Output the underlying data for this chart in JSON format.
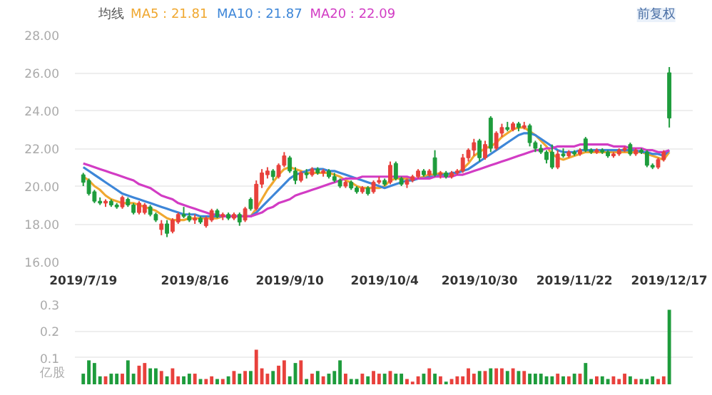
{
  "chart_data": [
    {
      "type": "candlestick",
      "legend": "top left",
      "legend_title": "均线",
      "annotations": [
        "前复权"
      ],
      "grid": "y",
      "categories": [
        "2019/7/19",
        null,
        null,
        null,
        null,
        null,
        null,
        null,
        null,
        null,
        null,
        null,
        null,
        null,
        null,
        null,
        null,
        null,
        null,
        null,
        "2019/8/16",
        null,
        null,
        null,
        null,
        null,
        null,
        null,
        null,
        null,
        null,
        null,
        null,
        null,
        null,
        null,
        null,
        "2019/9/10",
        null,
        null,
        null,
        null,
        null,
        null,
        null,
        null,
        null,
        null,
        null,
        null,
        null,
        null,
        null,
        null,
        "2019/10/4",
        null,
        null,
        null,
        null,
        null,
        null,
        null,
        null,
        null,
        null,
        null,
        null,
        null,
        null,
        null,
        null,
        "2019/10/30",
        null,
        null,
        null,
        null,
        null,
        null,
        null,
        null,
        null,
        null,
        null,
        null,
        null,
        null,
        null,
        null,
        "2019/11/22",
        null,
        null,
        null,
        null,
        null,
        null,
        null,
        null,
        null,
        null,
        null,
        null,
        null,
        null,
        null,
        null,
        "2019/12/17"
      ],
      "ylim": [
        16,
        28
      ],
      "yticks": [
        {
          "value": 16,
          "label": "16.00"
        },
        {
          "value": 18,
          "label": "18.00"
        },
        {
          "value": 20,
          "label": "20.00"
        },
        {
          "value": 22,
          "label": "22.00"
        },
        {
          "value": 24,
          "label": "24.00"
        },
        {
          "value": 26,
          "label": "26.00"
        },
        {
          "value": 28,
          "label": "28.00"
        }
      ],
      "colors": [
        "#1e9c3c",
        "#1e9c3c",
        "#1e9c3c",
        "#1e9c3c",
        "#e8413c",
        "#1e9c3c",
        "#1e9c3c",
        "#e8413c",
        "#1e9c3c",
        "#1e9c3c",
        "#e8413c",
        "#e8413c",
        "#1e9c3c",
        "#1e9c3c",
        "#e8413c",
        "#1e9c3c",
        "#e8413c",
        "#e8413c",
        "#1e9c3c",
        "#1e9c3c",
        "#e8413c",
        "#1e9c3c",
        "#e8413c",
        "#e8413c",
        "#1e9c3c",
        "#e8413c",
        "#1e9c3c",
        "#e8413c",
        "#1e9c3c",
        "#e8413c",
        "#1e9c3c",
        "#e8413c",
        "#e8413c",
        "#e8413c",
        "#1e9c3c",
        "#e8413c",
        "#e8413c",
        "#1e9c3c",
        "#1e9c3c",
        "#e8413c",
        "#1e9c3c",
        "#e8413c",
        "#1e9c3c",
        "#e8413c",
        "#1e9c3c",
        "#1e9c3c",
        "#1e9c3c",
        "#e8413c",
        "#1e9c3c",
        "#1e9c3c",
        "#e8413c",
        "#1e9c3c",
        "#e8413c",
        "#e8413c",
        "#1e9c3c",
        "#e8413c",
        "#1e9c3c",
        "#1e9c3c",
        "#e8413c",
        "#e8413c",
        "#e8413c",
        "#1e9c3c",
        "#e8413c",
        "#1e9c3c",
        "#e8413c",
        "#1e9c3c",
        "#e8413c",
        "#e8413c",
        "#e8413c",
        "#e8413c",
        "#e8413c",
        "#1e9c3c",
        "#e8413c",
        "#1e9c3c",
        "#e8413c",
        "#e8413c",
        "#1e9c3c",
        "#e8413c",
        "#1e9c3c",
        "#e8413c",
        "#1e9c3c",
        "#1e9c3c",
        "#1e9c3c",
        "#1e9c3c",
        "#1e9c3c",
        "#e8413c",
        "#1e9c3c",
        "#e8413c",
        "#1e9c3c",
        "#e8413c",
        "#1e9c3c",
        "#1e9c3c",
        "#e8413c",
        "#1e9c3c",
        "#1e9c3c",
        "#e8413c",
        "#e8413c",
        "#e8413c",
        "#1e9c3c",
        "#e8413c",
        "#1e9c3c",
        "#1e9c3c",
        "#1e9c3c",
        "#e8413c",
        "#e8413c",
        "#1e9c3c"
      ],
      "ohlc": [
        [
          20.6,
          20.7,
          20.0,
          20.2
        ],
        [
          20.3,
          20.4,
          19.5,
          19.6
        ],
        [
          19.7,
          19.8,
          19.1,
          19.2
        ],
        [
          19.2,
          19.4,
          19.0,
          19.1
        ],
        [
          19.1,
          19.3,
          18.9,
          19.2
        ],
        [
          19.2,
          19.3,
          18.9,
          19.0
        ],
        [
          19.0,
          19.1,
          18.8,
          18.9
        ],
        [
          18.9,
          19.5,
          18.8,
          19.4
        ],
        [
          19.3,
          19.4,
          18.9,
          19.0
        ],
        [
          19.0,
          19.1,
          18.5,
          18.6
        ],
        [
          18.6,
          19.2,
          18.5,
          19.1
        ],
        [
          18.6,
          19.1,
          18.5,
          19.0
        ],
        [
          18.9,
          19.0,
          18.4,
          18.5
        ],
        [
          18.5,
          18.6,
          18.1,
          18.2
        ],
        [
          17.7,
          18.2,
          17.4,
          18.0
        ],
        [
          18.0,
          18.2,
          17.3,
          17.5
        ],
        [
          17.6,
          18.3,
          17.5,
          18.2
        ],
        [
          18.1,
          18.6,
          18.0,
          18.5
        ],
        [
          18.5,
          18.9,
          18.3,
          18.4
        ],
        [
          18.4,
          18.6,
          18.1,
          18.2
        ],
        [
          18.2,
          18.5,
          18.0,
          18.3
        ],
        [
          18.3,
          18.4,
          18.0,
          18.1
        ],
        [
          17.9,
          18.4,
          17.8,
          18.3
        ],
        [
          18.2,
          18.8,
          18.1,
          18.7
        ],
        [
          18.7,
          18.8,
          18.3,
          18.4
        ],
        [
          18.4,
          18.6,
          18.2,
          18.5
        ],
        [
          18.5,
          18.6,
          18.2,
          18.3
        ],
        [
          18.3,
          18.6,
          18.2,
          18.5
        ],
        [
          18.5,
          18.6,
          17.9,
          18.1
        ],
        [
          18.2,
          18.9,
          18.1,
          18.8
        ],
        [
          19.3,
          19.4,
          18.7,
          18.8
        ],
        [
          18.8,
          20.3,
          18.7,
          20.1
        ],
        [
          20.1,
          20.9,
          19.9,
          20.7
        ],
        [
          20.6,
          21.0,
          20.4,
          20.8
        ],
        [
          20.8,
          20.9,
          20.3,
          20.5
        ],
        [
          20.5,
          21.2,
          20.4,
          21.1
        ],
        [
          21.1,
          21.8,
          21.0,
          21.6
        ],
        [
          21.5,
          21.6,
          20.7,
          20.8
        ],
        [
          20.8,
          21.0,
          20.1,
          20.3
        ],
        [
          20.3,
          20.8,
          20.2,
          20.7
        ],
        [
          20.7,
          20.9,
          20.4,
          20.6
        ],
        [
          20.6,
          21.0,
          20.5,
          20.9
        ],
        [
          20.9,
          21.0,
          20.6,
          20.7
        ],
        [
          20.7,
          20.9,
          20.5,
          20.8
        ],
        [
          20.8,
          20.9,
          20.4,
          20.5
        ],
        [
          20.5,
          20.7,
          20.2,
          20.3
        ],
        [
          20.3,
          20.4,
          19.9,
          20.0
        ],
        [
          20.0,
          20.3,
          19.9,
          20.2
        ],
        [
          20.2,
          20.3,
          19.8,
          19.9
        ],
        [
          19.9,
          20.0,
          19.6,
          19.7
        ],
        [
          19.7,
          20.0,
          19.6,
          19.9
        ],
        [
          19.9,
          20.0,
          19.5,
          19.6
        ],
        [
          19.7,
          20.3,
          19.6,
          20.2
        ],
        [
          20.2,
          20.5,
          20.1,
          20.3
        ],
        [
          20.3,
          20.4,
          20.0,
          20.1
        ],
        [
          20.2,
          21.3,
          20.1,
          21.1
        ],
        [
          21.2,
          21.3,
          20.3,
          20.4
        ],
        [
          20.4,
          20.5,
          20.0,
          20.1
        ],
        [
          20.1,
          20.4,
          19.9,
          20.3
        ],
        [
          20.3,
          20.6,
          20.2,
          20.5
        ],
        [
          20.5,
          20.9,
          20.4,
          20.8
        ],
        [
          20.8,
          20.9,
          20.5,
          20.6
        ],
        [
          20.6,
          20.9,
          20.5,
          20.8
        ],
        [
          21.5,
          21.9,
          20.5,
          20.6
        ],
        [
          20.6,
          20.8,
          20.4,
          20.7
        ],
        [
          20.7,
          20.8,
          20.4,
          20.5
        ],
        [
          20.5,
          20.8,
          20.4,
          20.7
        ],
        [
          20.7,
          20.9,
          20.6,
          20.8
        ],
        [
          20.8,
          21.7,
          20.7,
          21.5
        ],
        [
          21.5,
          22.0,
          21.3,
          21.9
        ],
        [
          21.9,
          22.5,
          21.6,
          22.3
        ],
        [
          22.4,
          22.5,
          21.3,
          21.5
        ],
        [
          21.5,
          22.4,
          21.4,
          22.2
        ],
        [
          23.6,
          23.7,
          21.8,
          22.0
        ],
        [
          22.0,
          22.9,
          21.9,
          22.8
        ],
        [
          22.8,
          23.3,
          22.6,
          23.1
        ],
        [
          23.1,
          23.4,
          22.9,
          23.0
        ],
        [
          23.0,
          23.4,
          22.9,
          23.3
        ],
        [
          23.3,
          23.4,
          22.9,
          23.1
        ],
        [
          23.1,
          23.4,
          23.0,
          23.2
        ],
        [
          23.2,
          23.3,
          22.1,
          22.3
        ],
        [
          22.3,
          22.4,
          21.8,
          22.0
        ],
        [
          22.0,
          22.2,
          21.7,
          21.8
        ],
        [
          21.8,
          21.9,
          21.2,
          21.4
        ],
        [
          21.8,
          22.2,
          20.9,
          21.0
        ],
        [
          21.0,
          21.9,
          20.9,
          21.7
        ],
        [
          21.7,
          22.0,
          21.5,
          21.6
        ],
        [
          21.6,
          21.9,
          21.5,
          21.8
        ],
        [
          21.8,
          21.9,
          21.6,
          21.7
        ],
        [
          21.7,
          22.0,
          21.6,
          21.9
        ],
        [
          22.5,
          22.6,
          21.8,
          21.9
        ],
        [
          21.9,
          22.0,
          21.7,
          21.8
        ],
        [
          21.8,
          22.0,
          21.7,
          21.9
        ],
        [
          21.9,
          22.0,
          21.7,
          21.8
        ],
        [
          21.8,
          21.9,
          21.5,
          21.6
        ],
        [
          21.6,
          21.8,
          21.5,
          21.7
        ],
        [
          21.7,
          22.0,
          21.6,
          21.9
        ],
        [
          21.9,
          22.1,
          21.8,
          22.0
        ],
        [
          22.2,
          22.3,
          21.6,
          21.7
        ],
        [
          21.7,
          22.0,
          21.6,
          21.9
        ],
        [
          21.9,
          22.0,
          21.7,
          21.8
        ],
        [
          21.8,
          21.9,
          21.0,
          21.1
        ],
        [
          21.1,
          21.2,
          20.9,
          21.0
        ],
        [
          21.0,
          21.5,
          20.9,
          21.4
        ],
        [
          21.4,
          21.9,
          21.3,
          21.8
        ],
        [
          26.0,
          26.3,
          23.1,
          23.6
        ]
      ],
      "series": [
        {
          "type": "line",
          "name": "MA5 : 21.81",
          "color": "#f0a830",
          "values": [
            20.5,
            20.3,
            20.0,
            19.8,
            19.5,
            19.3,
            19.2,
            19.1,
            19.1,
            19.1,
            19.0,
            18.9,
            18.8,
            18.7,
            18.5,
            18.3,
            18.2,
            18.2,
            18.2,
            18.3,
            18.3,
            18.3,
            18.3,
            18.3,
            18.3,
            18.4,
            18.4,
            18.4,
            18.4,
            18.4,
            18.4,
            18.8,
            19.3,
            19.8,
            20.2,
            20.6,
            20.9,
            21.0,
            20.9,
            20.8,
            20.7,
            20.7,
            20.7,
            20.7,
            20.7,
            20.6,
            20.5,
            20.3,
            20.2,
            20.0,
            19.9,
            19.9,
            19.9,
            19.9,
            20.0,
            20.3,
            20.4,
            20.4,
            20.4,
            20.4,
            20.4,
            20.5,
            20.6,
            20.6,
            20.7,
            20.6,
            20.6,
            20.7,
            20.9,
            21.2,
            21.6,
            21.8,
            22.0,
            22.1,
            22.3,
            22.6,
            22.8,
            23.0,
            23.1,
            23.1,
            22.9,
            22.7,
            22.4,
            22.1,
            21.7,
            21.5,
            21.4,
            21.5,
            21.6,
            21.7,
            21.8,
            21.8,
            21.8,
            21.8,
            21.8,
            21.8,
            21.8,
            21.8,
            21.8,
            21.8,
            21.8,
            21.7,
            21.6,
            21.5,
            21.4,
            21.8
          ]
        },
        {
          "type": "line",
          "name": "MA10 : 21.87",
          "color": "#3d86d8",
          "values": [
            21.0,
            20.8,
            20.6,
            20.4,
            20.2,
            20.0,
            19.8,
            19.6,
            19.5,
            19.4,
            19.3,
            19.2,
            19.1,
            19.0,
            18.9,
            18.8,
            18.7,
            18.6,
            18.5,
            18.5,
            18.5,
            18.4,
            18.4,
            18.4,
            18.4,
            18.4,
            18.4,
            18.4,
            18.4,
            18.4,
            18.4,
            18.6,
            18.9,
            19.2,
            19.5,
            19.8,
            20.1,
            20.4,
            20.6,
            20.7,
            20.8,
            20.9,
            20.9,
            20.9,
            20.8,
            20.8,
            20.7,
            20.6,
            20.5,
            20.4,
            20.3,
            20.2,
            20.1,
            20.0,
            19.9,
            20.0,
            20.1,
            20.2,
            20.3,
            20.3,
            20.4,
            20.4,
            20.5,
            20.5,
            20.6,
            20.6,
            20.7,
            20.7,
            20.8,
            20.9,
            21.1,
            21.3,
            21.5,
            21.7,
            21.9,
            22.1,
            22.3,
            22.5,
            22.7,
            22.8,
            22.8,
            22.7,
            22.5,
            22.3,
            22.1,
            21.9,
            21.8,
            21.8,
            21.8,
            21.9,
            21.9,
            21.9,
            21.9,
            21.9,
            21.9,
            21.9,
            21.9,
            21.9,
            21.9,
            21.9,
            21.8,
            21.8,
            21.7,
            21.7,
            21.6,
            21.9
          ]
        },
        {
          "type": "line",
          "name": "MA20 : 22.09",
          "color": "#d23cc4",
          "values": [
            21.2,
            21.1,
            21.0,
            20.9,
            20.8,
            20.7,
            20.6,
            20.5,
            20.4,
            20.3,
            20.1,
            20.0,
            19.9,
            19.7,
            19.5,
            19.4,
            19.3,
            19.1,
            19.0,
            18.9,
            18.8,
            18.7,
            18.6,
            18.5,
            18.5,
            18.4,
            18.4,
            18.4,
            18.4,
            18.4,
            18.4,
            18.5,
            18.6,
            18.8,
            18.9,
            19.1,
            19.2,
            19.3,
            19.5,
            19.6,
            19.7,
            19.8,
            19.9,
            20.0,
            20.1,
            20.2,
            20.3,
            20.4,
            20.4,
            20.4,
            20.5,
            20.5,
            20.5,
            20.5,
            20.5,
            20.5,
            20.5,
            20.5,
            20.5,
            20.4,
            20.4,
            20.4,
            20.4,
            20.5,
            20.5,
            20.5,
            20.5,
            20.6,
            20.6,
            20.7,
            20.8,
            20.9,
            21.0,
            21.1,
            21.2,
            21.3,
            21.4,
            21.5,
            21.6,
            21.7,
            21.8,
            21.9,
            21.9,
            22.0,
            22.0,
            22.1,
            22.1,
            22.1,
            22.1,
            22.2,
            22.2,
            22.2,
            22.2,
            22.2,
            22.2,
            22.1,
            22.1,
            22.1,
            22.0,
            22.0,
            22.0,
            21.9,
            21.9,
            21.8,
            21.8,
            21.9
          ]
        }
      ]
    },
    {
      "type": "bar",
      "grid": "y",
      "tick_labels": "y",
      "categories": [
        "2019/7/19",
        null,
        null,
        null,
        null,
        null,
        null,
        null,
        null,
        null,
        null,
        null,
        null,
        null,
        null,
        null,
        null,
        null,
        null,
        null,
        "2019/8/16",
        null,
        null,
        null,
        null,
        null,
        null,
        null,
        null,
        null,
        null,
        null,
        null,
        null,
        null,
        null,
        null,
        "2019/9/10",
        null,
        null,
        null,
        null,
        null,
        null,
        null,
        null,
        null,
        null,
        null,
        null,
        null,
        null,
        null,
        null,
        "2019/10/4",
        null,
        null,
        null,
        null,
        null,
        null,
        null,
        null,
        null,
        null,
        null,
        null,
        null,
        null,
        null,
        null,
        "2019/10/30",
        null,
        null,
        null,
        null,
        null,
        null,
        null,
        null,
        null,
        null,
        null,
        null,
        null,
        null,
        null,
        null,
        "2019/11/22",
        null,
        null,
        null,
        null,
        null,
        null,
        null,
        null,
        null,
        null,
        null,
        null,
        null,
        null,
        null,
        null,
        "2019/12/17"
      ],
      "ylim": [
        0,
        0.3
      ],
      "yticks": [
        0.1,
        0.2,
        0.3
      ],
      "annotations": [
        "亿股"
      ],
      "values": [
        0.04,
        0.09,
        0.08,
        0.03,
        0.03,
        0.04,
        0.04,
        0.04,
        0.09,
        0.04,
        0.07,
        0.08,
        0.06,
        0.06,
        0.05,
        0.03,
        0.06,
        0.03,
        0.03,
        0.04,
        0.04,
        0.02,
        0.02,
        0.03,
        0.02,
        0.02,
        0.03,
        0.05,
        0.04,
        0.05,
        0.05,
        0.13,
        0.06,
        0.04,
        0.05,
        0.07,
        0.09,
        0.03,
        0.08,
        0.09,
        0.02,
        0.04,
        0.05,
        0.03,
        0.04,
        0.05,
        0.09,
        0.04,
        0.02,
        0.02,
        0.04,
        0.03,
        0.05,
        0.04,
        0.04,
        0.05,
        0.04,
        0.04,
        0.02,
        0.01,
        0.03,
        0.04,
        0.06,
        0.04,
        0.03,
        0.01,
        0.02,
        0.03,
        0.03,
        0.06,
        0.04,
        0.05,
        0.05,
        0.06,
        0.06,
        0.06,
        0.05,
        0.06,
        0.05,
        0.05,
        0.04,
        0.04,
        0.04,
        0.03,
        0.03,
        0.04,
        0.03,
        0.03,
        0.04,
        0.04,
        0.08,
        0.02,
        0.03,
        0.03,
        0.02,
        0.03,
        0.02,
        0.04,
        0.03,
        0.02,
        0.02,
        0.02,
        0.03,
        0.02,
        0.03,
        0.28
      ],
      "colors": [
        "#1e9c3c",
        "#1e9c3c",
        "#1e9c3c",
        "#1e9c3c",
        "#e8413c",
        "#1e9c3c",
        "#1e9c3c",
        "#e8413c",
        "#1e9c3c",
        "#1e9c3c",
        "#e8413c",
        "#e8413c",
        "#1e9c3c",
        "#1e9c3c",
        "#e8413c",
        "#1e9c3c",
        "#e8413c",
        "#e8413c",
        "#1e9c3c",
        "#1e9c3c",
        "#e8413c",
        "#1e9c3c",
        "#e8413c",
        "#e8413c",
        "#1e9c3c",
        "#e8413c",
        "#1e9c3c",
        "#e8413c",
        "#1e9c3c",
        "#e8413c",
        "#1e9c3c",
        "#e8413c",
        "#e8413c",
        "#e8413c",
        "#1e9c3c",
        "#e8413c",
        "#e8413c",
        "#1e9c3c",
        "#1e9c3c",
        "#e8413c",
        "#1e9c3c",
        "#e8413c",
        "#1e9c3c",
        "#e8413c",
        "#1e9c3c",
        "#1e9c3c",
        "#1e9c3c",
        "#e8413c",
        "#1e9c3c",
        "#1e9c3c",
        "#e8413c",
        "#1e9c3c",
        "#e8413c",
        "#e8413c",
        "#1e9c3c",
        "#e8413c",
        "#1e9c3c",
        "#1e9c3c",
        "#e8413c",
        "#e8413c",
        "#e8413c",
        "#1e9c3c",
        "#e8413c",
        "#1e9c3c",
        "#e8413c",
        "#1e9c3c",
        "#e8413c",
        "#e8413c",
        "#e8413c",
        "#e8413c",
        "#e8413c",
        "#1e9c3c",
        "#e8413c",
        "#1e9c3c",
        "#e8413c",
        "#e8413c",
        "#1e9c3c",
        "#e8413c",
        "#1e9c3c",
        "#e8413c",
        "#1e9c3c",
        "#1e9c3c",
        "#1e9c3c",
        "#1e9c3c",
        "#1e9c3c",
        "#e8413c",
        "#1e9c3c",
        "#e8413c",
        "#1e9c3c",
        "#e8413c",
        "#1e9c3c",
        "#1e9c3c",
        "#e8413c",
        "#1e9c3c",
        "#1e9c3c",
        "#e8413c",
        "#e8413c",
        "#e8413c",
        "#1e9c3c",
        "#e8413c",
        "#1e9c3c",
        "#1e9c3c",
        "#1e9c3c",
        "#e8413c",
        "#e8413c",
        "#1e9c3c"
      ]
    }
  ]
}
